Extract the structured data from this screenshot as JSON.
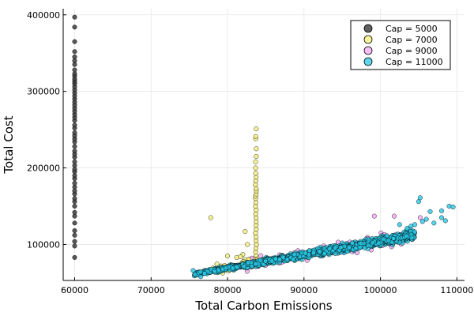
{
  "chart_data": {
    "type": "scatter",
    "xlabel": "Total Carbon Emissions",
    "ylabel": "Total Cost",
    "xlim": [
      58500,
      111000
    ],
    "ylim": [
      53000,
      408000
    ],
    "xticks": [
      60000,
      70000,
      80000,
      90000,
      100000,
      110000
    ],
    "yticks": [
      100000,
      200000,
      300000,
      400000
    ],
    "grid": true,
    "legend_position": "top-right",
    "series": [
      {
        "name": "Cap = 5000",
        "color": "#3a3a3a",
        "fixed_x": 60000,
        "y": [
          83000,
          98000,
          104000,
          112000,
          118000,
          128000,
          137000,
          142000,
          150000,
          156000,
          160000,
          166000,
          170000,
          175000,
          180000,
          186000,
          190000,
          195000,
          198000,
          203000,
          208000,
          214000,
          218000,
          222000,
          228000,
          234000,
          238000,
          242000,
          246000,
          252000,
          256000,
          262000,
          266000,
          270000,
          274000,
          278000,
          282000,
          286000,
          290000,
          294000,
          298000,
          302000,
          306000,
          310000,
          313000,
          316000,
          320000,
          323000,
          328000,
          335000,
          340000,
          345000,
          352000,
          365000,
          384000,
          397000
        ]
      },
      {
        "name": "Cap = 7000",
        "color": "#f5f07a",
        "vertical_x": 83700,
        "y": [
          85000,
          90000,
          95000,
          100000,
          105000,
          110000,
          115000,
          120000,
          125000,
          130000,
          135000,
          140000,
          145000,
          150000,
          155000,
          160000,
          163000,
          166000,
          170000,
          173000,
          178000,
          183000,
          188000,
          193000,
          200000,
          208000,
          215000,
          225000,
          238000,
          241000,
          251000
        ],
        "extra_points": [
          [
            77800,
            135000
          ],
          [
            80000,
            85000
          ],
          [
            81200,
            83000
          ],
          [
            82000,
            87000
          ],
          [
            82600,
            100000
          ],
          [
            82300,
            117000
          ],
          [
            81700,
            84000
          ],
          [
            79500,
            70000
          ],
          [
            78200,
            66000
          ]
        ]
      },
      {
        "name": "Cap = 9000",
        "color": "#f4a8f4",
        "points": [
          [
            99200,
            137000
          ],
          [
            101800,
            137000
          ],
          [
            105200,
            135000
          ],
          [
            103500,
            115000
          ],
          [
            96000,
            103000
          ]
        ]
      },
      {
        "name": "Cap = 11000",
        "color": "#28c8e6",
        "trend": {
          "x_start": 75500,
          "x_end": 104500,
          "y_start": 61000,
          "y_end": 112000,
          "n": 1400,
          "spread": 6500
        },
        "outliers": [
          [
            75500,
            66000
          ],
          [
            76500,
            58000
          ],
          [
            77000,
            62000
          ],
          [
            104000,
            124000
          ],
          [
            104500,
            126000
          ],
          [
            105000,
            156000
          ],
          [
            105200,
            161000
          ],
          [
            106000,
            133000
          ],
          [
            106500,
            143000
          ],
          [
            107000,
            128000
          ],
          [
            108000,
            135000
          ],
          [
            108500,
            131000
          ],
          [
            108000,
            144000
          ],
          [
            109000,
            150000
          ],
          [
            109500,
            149000
          ],
          [
            103500,
            121000
          ],
          [
            102500,
            126000
          ],
          [
            105500,
            130000
          ]
        ]
      }
    ]
  }
}
